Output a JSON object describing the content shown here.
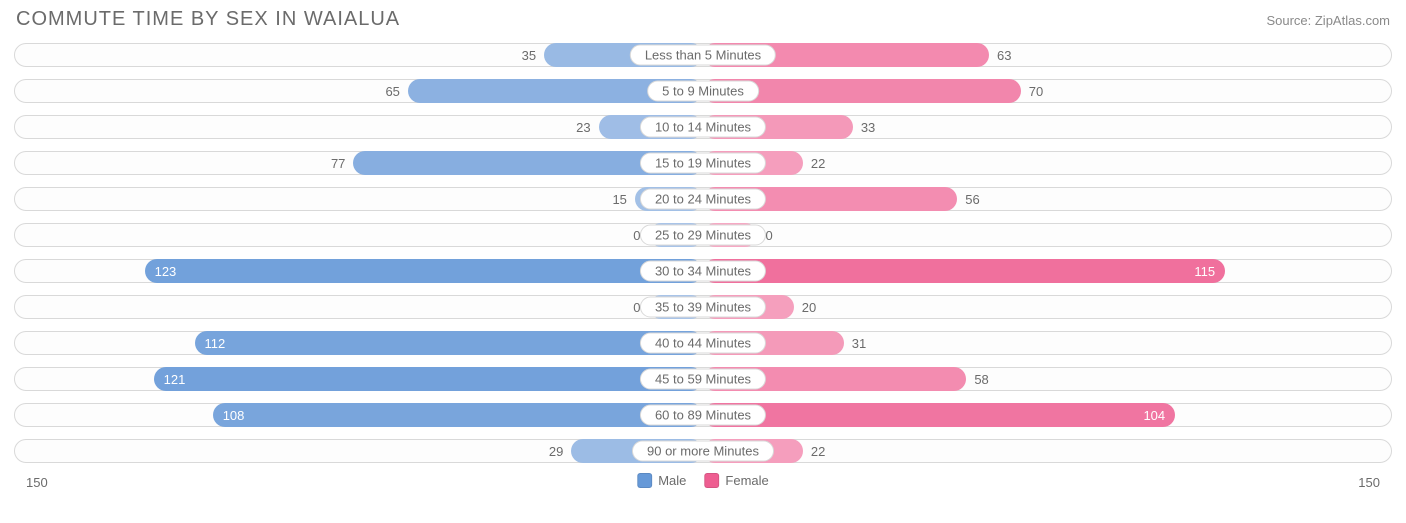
{
  "title": "COMMUTE TIME BY SEX IN WAIALUA",
  "source": "Source: ZipAtlas.com",
  "chart": {
    "type": "diverging-bar",
    "axis_max": 150,
    "axis_max_label": "150",
    "track_border_color": "#d9d9d9",
    "track_bg": "#fdfdfd",
    "label_fontsize": 13,
    "label_color": "#6b6b6b",
    "title_fontsize": 20,
    "title_color": "#6b6b6b",
    "bar_value_inside_threshold": 100,
    "categories": [
      {
        "label": "Less than 5 Minutes",
        "male": 35,
        "female": 63
      },
      {
        "label": "5 to 9 Minutes",
        "male": 65,
        "female": 70
      },
      {
        "label": "10 to 14 Minutes",
        "male": 23,
        "female": 33
      },
      {
        "label": "15 to 19 Minutes",
        "male": 77,
        "female": 22
      },
      {
        "label": "20 to 24 Minutes",
        "male": 15,
        "female": 56
      },
      {
        "label": "25 to 29 Minutes",
        "male": 0,
        "female": 0
      },
      {
        "label": "30 to 34 Minutes",
        "male": 123,
        "female": 115
      },
      {
        "label": "35 to 39 Minutes",
        "male": 0,
        "female": 20
      },
      {
        "label": "40 to 44 Minutes",
        "male": 112,
        "female": 31
      },
      {
        "label": "45 to 59 Minutes",
        "male": 121,
        "female": 58
      },
      {
        "label": "60 to 89 Minutes",
        "male": 108,
        "female": 104
      },
      {
        "label": "90 or more Minutes",
        "male": 29,
        "female": 22
      }
    ],
    "series": {
      "male": {
        "label": "Male",
        "color": "#6699d8",
        "min_bar_color": "#a9c4e8"
      },
      "female": {
        "label": "Female",
        "color": "#ee5e91",
        "min_bar_color": "#f6a9c4"
      }
    },
    "zero_bar_min_width_pct": 8
  }
}
